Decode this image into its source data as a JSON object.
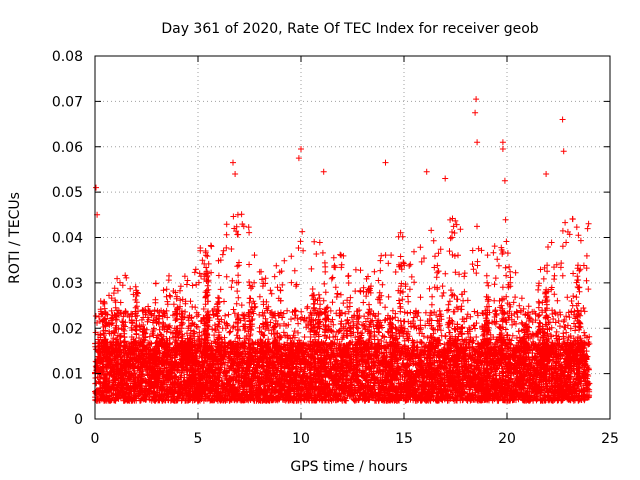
{
  "chart_data": {
    "type": "scatter",
    "title": "Day 361 of 2020, Rate Of TEC Index for receiver geob",
    "xlabel": "GPS time / hours",
    "ylabel": "ROTI / TECUs",
    "xlim": [
      0,
      25
    ],
    "ylim": [
      0,
      0.08
    ],
    "x_ticks": [
      "0",
      "5",
      "10",
      "15",
      "20",
      "25"
    ],
    "y_ticks": [
      "0",
      "0.01",
      "0.02",
      "0.03",
      "0.04",
      "0.05",
      "0.06",
      "0.07",
      "0.08"
    ],
    "grid": true,
    "legend": "none",
    "marker": "plus",
    "color": "#ff0000",
    "data_extent_x": [
      0,
      24
    ],
    "series_notes": "Dense red plus-marker cloud; bulk of points between 0.003 and 0.02 TECUs throughout 0-24 h with frequent spikes to 0.03-0.05",
    "highlights": [
      {
        "x": 0.05,
        "y": 0.051
      },
      {
        "x": 0.1,
        "y": 0.045
      },
      {
        "x": 6.7,
        "y": 0.0565
      },
      {
        "x": 6.8,
        "y": 0.054
      },
      {
        "x": 10.0,
        "y": 0.0595
      },
      {
        "x": 9.9,
        "y": 0.0575
      },
      {
        "x": 11.1,
        "y": 0.0545
      },
      {
        "x": 14.1,
        "y": 0.0565
      },
      {
        "x": 16.1,
        "y": 0.0545
      },
      {
        "x": 17.0,
        "y": 0.053
      },
      {
        "x": 18.5,
        "y": 0.0705
      },
      {
        "x": 18.45,
        "y": 0.0675
      },
      {
        "x": 18.55,
        "y": 0.061
      },
      {
        "x": 19.8,
        "y": 0.061
      },
      {
        "x": 19.8,
        "y": 0.0595
      },
      {
        "x": 22.7,
        "y": 0.066
      },
      {
        "x": 22.75,
        "y": 0.059
      },
      {
        "x": 21.9,
        "y": 0.054
      },
      {
        "x": 19.9,
        "y": 0.0525
      }
    ],
    "envelope": {
      "hours": [
        0,
        0.5,
        1,
        1.5,
        2,
        2.5,
        3,
        3.5,
        4,
        4.5,
        5,
        5.5,
        6,
        6.5,
        7,
        7.5,
        8,
        8.5,
        9,
        9.5,
        10,
        10.5,
        11,
        11.5,
        12,
        12.5,
        13,
        13.5,
        14,
        14.5,
        15,
        15.5,
        16,
        16.5,
        17,
        17.5,
        18,
        18.5,
        19,
        19.5,
        20,
        20.5,
        21,
        21.5,
        22,
        22.5,
        23,
        23.5,
        24
      ],
      "typical_upper": [
        0.028,
        0.029,
        0.031,
        0.033,
        0.03,
        0.025,
        0.031,
        0.032,
        0.03,
        0.034,
        0.038,
        0.041,
        0.036,
        0.045,
        0.048,
        0.042,
        0.033,
        0.031,
        0.036,
        0.039,
        0.044,
        0.038,
        0.042,
        0.035,
        0.038,
        0.036,
        0.034,
        0.032,
        0.042,
        0.039,
        0.043,
        0.037,
        0.046,
        0.041,
        0.044,
        0.045,
        0.043,
        0.048,
        0.036,
        0.039,
        0.045,
        0.03,
        0.026,
        0.034,
        0.038,
        0.043,
        0.046,
        0.044,
        0.045
      ]
    }
  }
}
